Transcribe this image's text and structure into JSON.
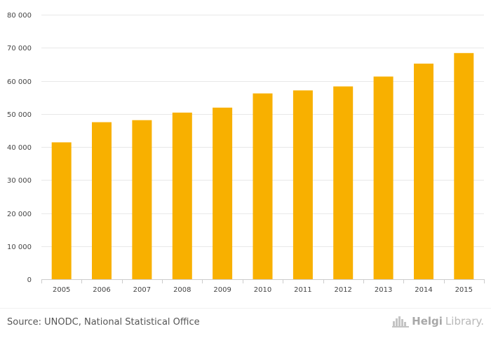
{
  "chart_data": {
    "type": "bar",
    "title": "",
    "xlabel": "",
    "ylabel": "",
    "categories": [
      "2005",
      "2006",
      "2007",
      "2008",
      "2009",
      "2010",
      "2011",
      "2012",
      "2013",
      "2014",
      "2015"
    ],
    "values": [
      41400,
      47500,
      48100,
      50400,
      51900,
      56200,
      57100,
      58300,
      61300,
      65200,
      68400
    ],
    "ylim": [
      0,
      80000
    ],
    "yticks": [
      0,
      10000,
      20000,
      30000,
      40000,
      50000,
      60000,
      70000,
      80000
    ],
    "ytick_labels": [
      "0",
      "10 000",
      "20 000",
      "30 000",
      "40 000",
      "50 000",
      "60 000",
      "70 000",
      "80 000"
    ],
    "grid": true,
    "bar_color": "#f8b000"
  },
  "footer": {
    "source": "Source: UNODC, National Statistical Office",
    "logo_part1": "Helgi",
    "logo_part2": "Library."
  },
  "colors": {
    "bar": "#f8b000",
    "grid": "#e8e8e8",
    "axis": "#cccccc",
    "text": "#444444"
  }
}
